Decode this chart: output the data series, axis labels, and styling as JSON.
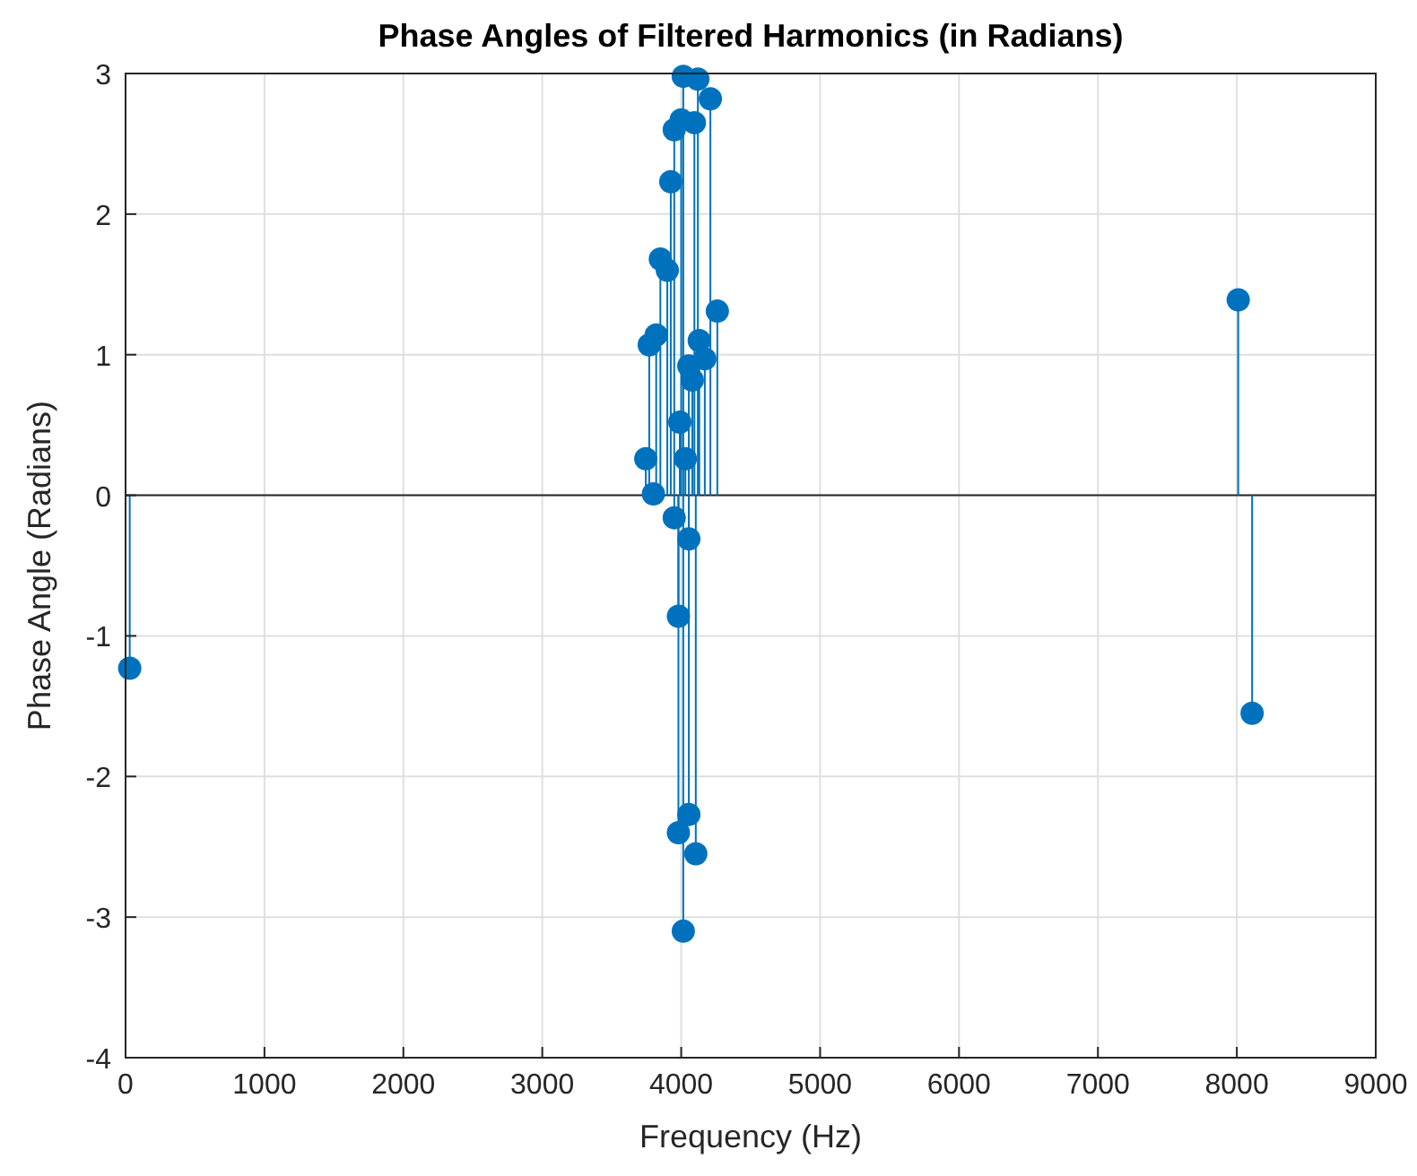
{
  "chart_data": {
    "type": "lollipop",
    "title": "Phase Angles of Filtered Harmonics (in Radians)",
    "xlabel": "Frequency (Hz)",
    "ylabel": "Phase Angle (Radians)",
    "x": [
      30,
      3745,
      3770,
      3800,
      3820,
      3850,
      3900,
      3925,
      3950,
      3950,
      3980,
      3980,
      3990,
      4000,
      4015,
      4015,
      4030,
      4055,
      4055,
      4055,
      4080,
      4095,
      4105,
      4120,
      4130,
      4170,
      4210,
      4260,
      8010,
      8110
    ],
    "series": [
      {
        "color": "#0072bd",
        "values": [
          -1.23,
          0.26,
          1.07,
          0.01,
          1.14,
          1.68,
          1.6,
          2.23,
          2.6,
          -0.16,
          -0.86,
          -2.4,
          0.52,
          2.67,
          2.98,
          -3.1,
          0.26,
          0.92,
          -0.31,
          -2.27,
          0.82,
          2.65,
          -2.55,
          2.96,
          1.1,
          0.97,
          2.82,
          1.31,
          1.39,
          -1.55
        ]
      }
    ],
    "xlim": [
      0,
      9000
    ],
    "xticks": [
      0,
      1000,
      2000,
      3000,
      4000,
      5000,
      6000,
      7000,
      8000,
      9000
    ],
    "ylim": [
      -4,
      3
    ],
    "yticks": [
      -4,
      -3,
      -2,
      -1,
      0,
      1,
      2,
      3
    ],
    "grid": true,
    "marker": "circle"
  }
}
